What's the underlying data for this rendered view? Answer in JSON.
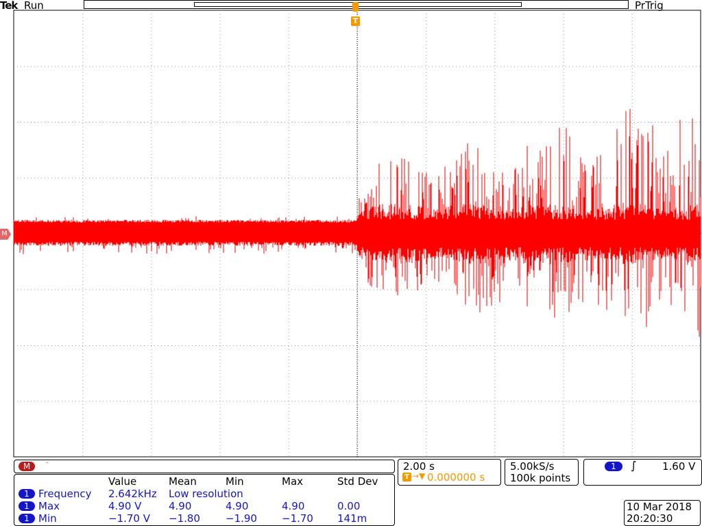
{
  "header": {
    "brand": "Tek",
    "run_state": "Run",
    "trigger_status": "PrTrig"
  },
  "markers": {
    "trigger_marker": "T",
    "ground_marker": "M"
  },
  "math_channel_label": "M",
  "timebase": {
    "scale": "2.00 s",
    "delay": "0.000000 s"
  },
  "acquisition": {
    "sample_rate": "5.00kS/s",
    "record_length": "100k points"
  },
  "trigger": {
    "channel": "1",
    "level": "1.60 V"
  },
  "measurements": {
    "headers": [
      "Value",
      "Mean",
      "Min",
      "Max",
      "Std Dev"
    ],
    "rows": [
      {
        "channel": "1",
        "name": "Frequency",
        "value": "2.642kHz",
        "mean": "Low resolution",
        "min": "",
        "max": "",
        "std": ""
      },
      {
        "channel": "1",
        "name": "Max",
        "value": "4.90 V",
        "mean": "4.90",
        "min": "4.90",
        "max": "4.90",
        "std": "0.00"
      },
      {
        "channel": "1",
        "name": "Min",
        "value": "−1.70 V",
        "mean": "−1.80",
        "min": "−1.90",
        "max": "−1.70",
        "std": "141m"
      }
    ]
  },
  "datetime": {
    "date": "10 Mar 2018",
    "time": "20:20:30"
  },
  "colors": {
    "trace": "#ff0000",
    "trigger": "#f29a00",
    "measurement_text": "#1515c8",
    "channel_pill": "#1515c8",
    "math_pill": "#b81c1c",
    "grid": "#000000"
  }
}
